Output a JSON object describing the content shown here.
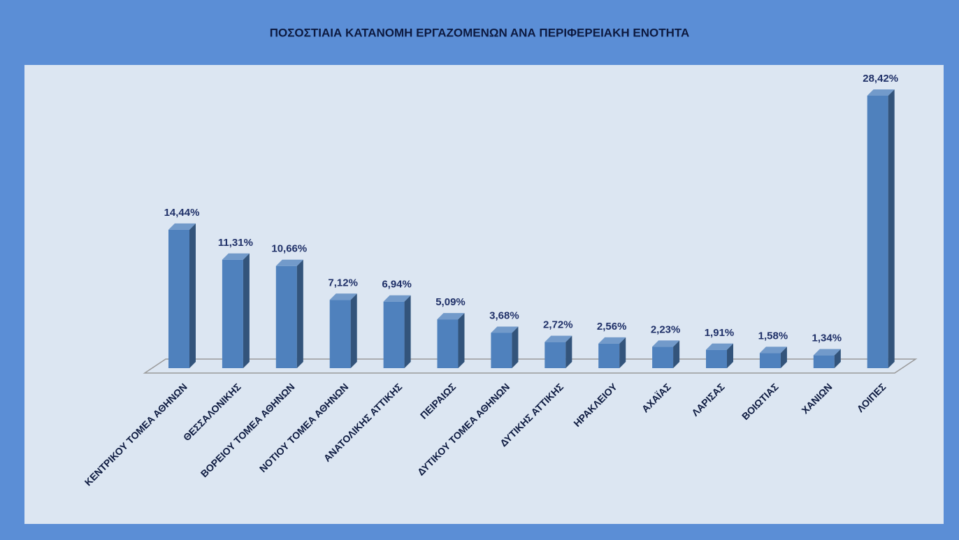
{
  "chart_data": {
    "type": "bar3d",
    "title": "ΠΟΣΟΣΤΙΑΙΑ ΚΑΤΑΝΟΜΗ ΕΡΓΑΖΟΜΕΝΩΝ ΑΝΑ ΠΕΡΙΦΕΡΕΙΑΚΗ ΕΝΟΤΗΤΑ",
    "categories": [
      "ΚΕΝΤΡΙΚΟΥ ΤΟΜΕΑ ΑΘΗΝΩΝ",
      "ΘΕΣΣΑΛΟΝΙΚΗΣ",
      "ΒΟΡΕΙΟΥ ΤΟΜΕΑ ΑΘΗΝΩΝ",
      "ΝΟΤΙΟΥ ΤΟΜΕΑ ΑΘΗΝΩΝ",
      "ΑΝΑΤΟΛΙΚΗΣ ΑΤΤΙΚΗΣ",
      "ΠΕΙΡΑΙΩΣ",
      "ΔΥΤΙΚΟΥ ΤΟΜΕΑ ΑΘΗΝΩΝ",
      "ΔΥΤΙΚΗΣ ΑΤΤΙΚΗΣ",
      "ΗΡΑΚΛΕΙΟΥ",
      "ΑΧΑΪΑΣ",
      "ΛΑΡΙΣΑΣ",
      "ΒΟΙΩΤΙΑΣ",
      "ΧΑΝΙΩΝ",
      "ΛΟΙΠΕΣ"
    ],
    "values": [
      14.44,
      11.31,
      10.66,
      7.12,
      6.94,
      5.09,
      3.68,
      2.72,
      2.56,
      2.23,
      1.91,
      1.58,
      1.34,
      28.42
    ],
    "value_labels": [
      "14,44%",
      "11,31%",
      "10,66%",
      "7,12%",
      "6,94%",
      "5,09%",
      "3,68%",
      "2,72%",
      "2,56%",
      "2,23%",
      "1,91%",
      "1,58%",
      "1,34%",
      "28,42%"
    ],
    "color": "#4f81bd"
  }
}
